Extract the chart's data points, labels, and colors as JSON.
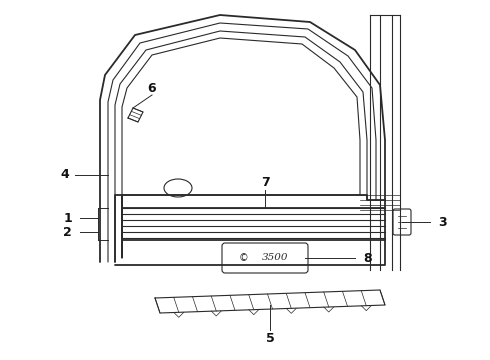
{
  "background_color": "#ffffff",
  "line_color": "#2a2a2a",
  "label_color": "#111111",
  "figsize": [
    4.9,
    3.6
  ],
  "dpi": 100,
  "label_fontsize": 9
}
